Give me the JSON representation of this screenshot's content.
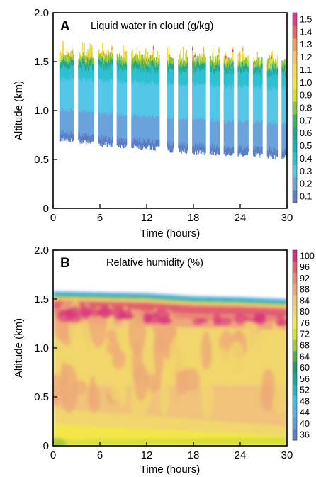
{
  "chart_data": [
    {
      "panel": "A",
      "type": "heatmap",
      "title": "Liquid water in cloud (g/kg)",
      "xlabel": "Time (hours)",
      "ylabel": "Altitude (km)",
      "xlim": [
        0,
        30
      ],
      "ylim": [
        0,
        2.0
      ],
      "xticks": [
        "0",
        "6",
        "12",
        "18",
        "24",
        "30"
      ],
      "yticks": [
        "0",
        "0.5",
        "1.0",
        "1.5",
        "2.0"
      ],
      "colorbar": {
        "levels": [
          "0.1",
          "0.2",
          "0.3",
          "0.4",
          "0.5",
          "0.6",
          "0.7",
          "0.8",
          "0.9",
          "1.0",
          "1.1",
          "1.2",
          "1.3",
          "1.4",
          "1.5"
        ],
        "colors": [
          "#5b7fc6",
          "#6aa3db",
          "#54c6e8",
          "#2dc0d0",
          "#16b2b8",
          "#20a890",
          "#3fb35c",
          "#8cc63e",
          "#d2df2a",
          "#f3e33a",
          "#f5d74f",
          "#f4c060",
          "#ef9e5c",
          "#e9665e",
          "#e63a8c"
        ]
      },
      "cloud_base_km": {
        "x": [
          0,
          6,
          12,
          18,
          24,
          30
        ],
        "y": [
          0.72,
          0.66,
          0.62,
          0.58,
          0.55,
          0.52
        ]
      },
      "cloud_top_km": {
        "x": [
          0,
          6,
          12,
          18,
          24,
          30
        ],
        "y": [
          1.55,
          1.55,
          1.52,
          1.52,
          1.5,
          1.48
        ]
      },
      "max_value": 1.5
    },
    {
      "panel": "B",
      "type": "heatmap",
      "title": "Relative humidity (%)",
      "xlabel": "Time (hours)",
      "ylabel": "Altitude (km)",
      "xlim": [
        0,
        30
      ],
      "ylim": [
        0,
        2.0
      ],
      "xticks": [
        "0",
        "6",
        "12",
        "18",
        "24",
        "30"
      ],
      "yticks": [
        "0",
        "0.5",
        "1.0",
        "1.5",
        "2.0"
      ],
      "colorbar": {
        "levels": [
          "36",
          "40",
          "44",
          "48",
          "52",
          "56",
          "60",
          "64",
          "68",
          "72",
          "76",
          "80",
          "84",
          "88",
          "92",
          "96",
          "100"
        ],
        "colors": [
          "#5b7fc6",
          "#5d9ad8",
          "#4fb3e3",
          "#3ec4e0",
          "#22b7c4",
          "#16a89c",
          "#1b9e63",
          "#52ad4a",
          "#9fc93b",
          "#d9df2e",
          "#f2e64a",
          "#f1d66c",
          "#f0c27a",
          "#eea877",
          "#e98a73",
          "#e25f70",
          "#d9307f"
        ]
      },
      "inversion_height_km": {
        "x": [
          0,
          6,
          12,
          18,
          24,
          30
        ],
        "y": [
          1.58,
          1.57,
          1.56,
          1.53,
          1.52,
          1.5
        ]
      }
    }
  ]
}
